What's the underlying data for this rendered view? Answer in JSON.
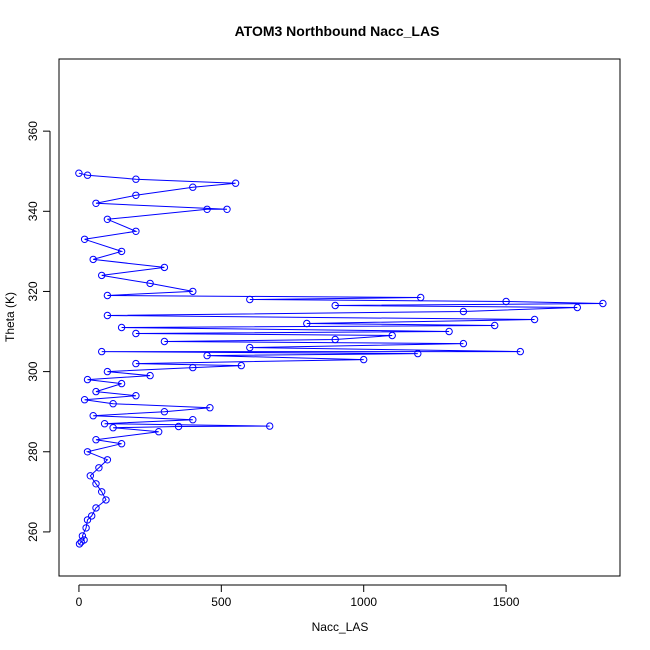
{
  "chart_data": {
    "type": "scatter",
    "title": "ATOM3 Northbound Nacc_LAS",
    "xlabel": "Nacc_LAS",
    "ylabel": "Theta (K)",
    "xlim": [
      -70,
      1900
    ],
    "ylim": [
      249,
      378
    ],
    "x_ticks": [
      0,
      500,
      1000,
      1500
    ],
    "y_ticks": [
      260,
      280,
      300,
      320,
      340,
      360
    ],
    "grid": false,
    "legend": "none",
    "marker": "open-circle",
    "connect_points": true,
    "color": "#0000ff",
    "series": [
      {
        "points": [
          [
            2,
            257
          ],
          [
            8,
            257.5
          ],
          [
            18,
            258
          ],
          [
            12,
            259
          ],
          [
            25,
            261
          ],
          [
            30,
            263
          ],
          [
            45,
            264
          ],
          [
            60,
            266
          ],
          [
            95,
            268
          ],
          [
            80,
            270
          ],
          [
            60,
            272
          ],
          [
            40,
            274
          ],
          [
            70,
            276
          ],
          [
            100,
            278
          ],
          [
            30,
            280
          ],
          [
            150,
            282
          ],
          [
            60,
            283
          ],
          [
            280,
            285
          ],
          [
            120,
            286
          ],
          [
            350,
            286.3
          ],
          [
            670,
            286.4
          ],
          [
            90,
            287
          ],
          [
            400,
            288
          ],
          [
            50,
            289
          ],
          [
            300,
            290
          ],
          [
            460,
            291
          ],
          [
            120,
            292
          ],
          [
            20,
            293
          ],
          [
            200,
            294
          ],
          [
            60,
            295
          ],
          [
            150,
            297
          ],
          [
            30,
            298
          ],
          [
            250,
            299
          ],
          [
            100,
            300
          ],
          [
            400,
            301
          ],
          [
            570,
            301.5
          ],
          [
            200,
            302
          ],
          [
            1000,
            303
          ],
          [
            450,
            304
          ],
          [
            1190,
            304.5
          ],
          [
            80,
            305
          ],
          [
            1550,
            305
          ],
          [
            600,
            306
          ],
          [
            1350,
            307
          ],
          [
            300,
            307.5
          ],
          [
            900,
            308
          ],
          [
            1100,
            309
          ],
          [
            200,
            309.5
          ],
          [
            1300,
            310
          ],
          [
            150,
            311
          ],
          [
            1460,
            311.5
          ],
          [
            800,
            312
          ],
          [
            1600,
            313
          ],
          [
            100,
            314
          ],
          [
            1350,
            315
          ],
          [
            1750,
            316
          ],
          [
            900,
            316.5
          ],
          [
            1840,
            317
          ],
          [
            1500,
            317.5
          ],
          [
            600,
            318
          ],
          [
            1200,
            318.5
          ],
          [
            100,
            319
          ],
          [
            400,
            320
          ],
          [
            250,
            322
          ],
          [
            80,
            324
          ],
          [
            300,
            326
          ],
          [
            50,
            328
          ],
          [
            150,
            330
          ],
          [
            20,
            333
          ],
          [
            200,
            335
          ],
          [
            100,
            338
          ],
          [
            450,
            340.5
          ],
          [
            520,
            340.5
          ],
          [
            60,
            342
          ],
          [
            200,
            344
          ],
          [
            400,
            346
          ],
          [
            550,
            347
          ],
          [
            200,
            348
          ],
          [
            30,
            349
          ],
          [
            0,
            349.5
          ]
        ]
      }
    ]
  }
}
